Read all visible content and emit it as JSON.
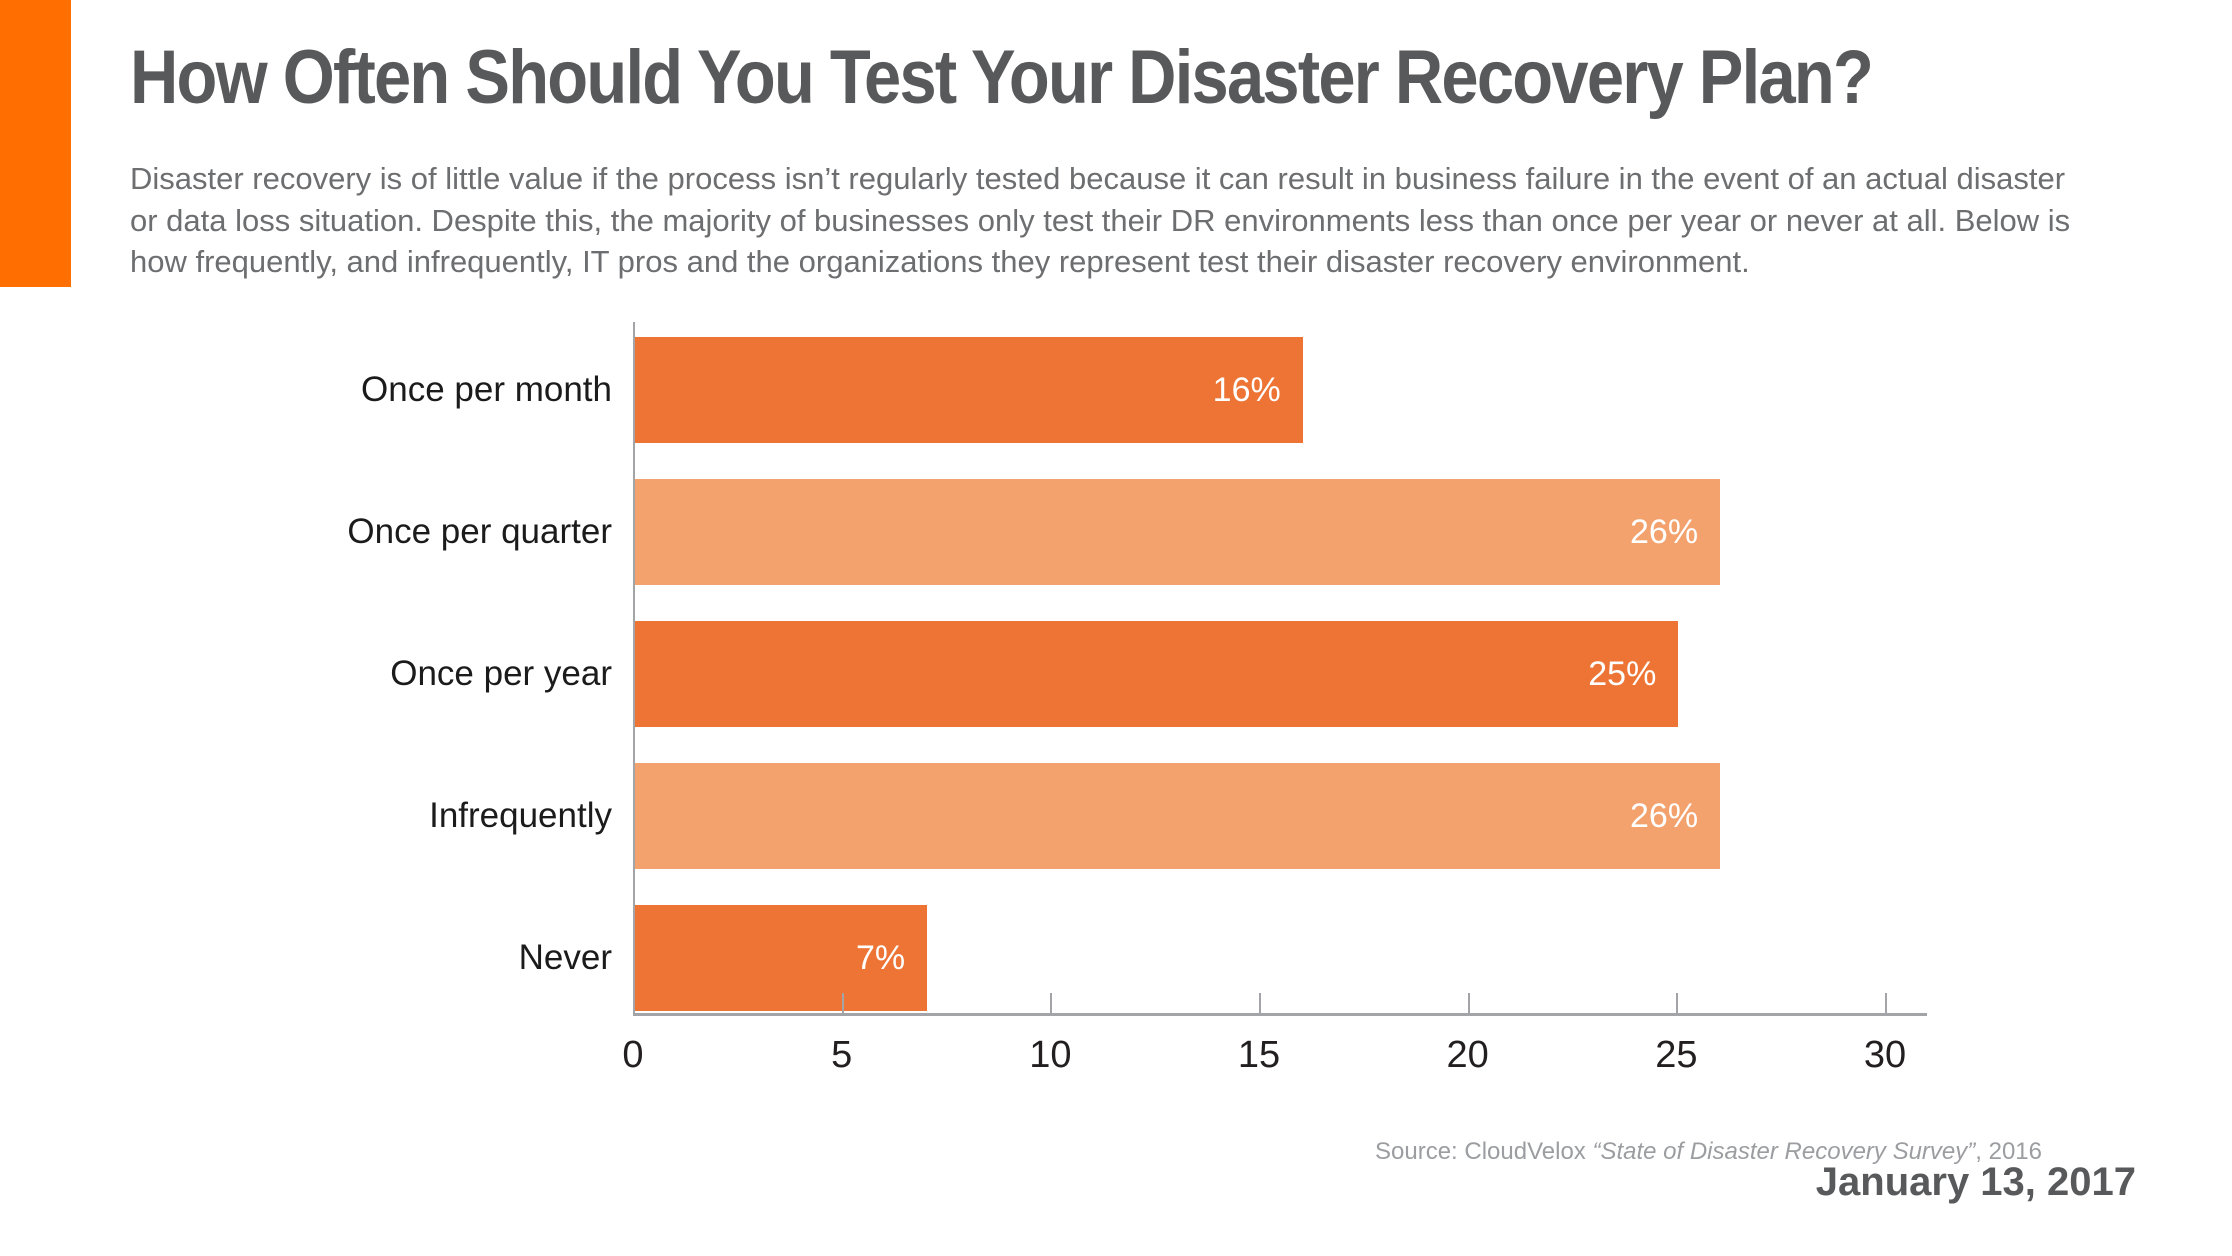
{
  "page": {
    "title": "How Often Should You Test Your Disaster Recovery Plan?",
    "subtitle": "Disaster recovery is of little value if the process isn’t regularly tested because it can result in business failure in the event of an actual disaster or data loss situation. Despite this, the majority of businesses only test their DR environments less than once per year or never at all. Below is how frequently, and infrequently, IT pros and the organizations they represent test their disaster recovery environment.",
    "source_prefix": "Source: CloudVelox ",
    "source_title": "“State of Disaster Recovery Survey”",
    "source_suffix": ", 2016",
    "date": "January 13, 2017"
  },
  "colors": {
    "accent": "#FF6E01",
    "bar_dark": "#ED7434",
    "bar_light": "#F3A26E",
    "title_text": "#58595B",
    "subtitle_text": "#6D6E70",
    "source_text": "#9B9DA0",
    "axis": "#A2A4A7",
    "label_text": "#1B1B1B",
    "value_text": "#FFFFFF"
  },
  "chart_data": {
    "type": "bar",
    "orientation": "horizontal",
    "title": "How Often Should You Test Your Disaster Recovery Plan?",
    "categories": [
      "Once per month",
      "Once per quarter",
      "Once per year",
      "Infrequently",
      "Never"
    ],
    "values": [
      16,
      26,
      25,
      26,
      7
    ],
    "value_labels": [
      "16%",
      "26%",
      "25%",
      "26%",
      "7%"
    ],
    "bar_colors": [
      "#ED7434",
      "#F3A26E",
      "#ED7434",
      "#F3A26E",
      "#ED7434"
    ],
    "xlabel": "",
    "ylabel": "",
    "xlim": [
      0,
      30
    ],
    "x_ticks": [
      0,
      5,
      10,
      15,
      20,
      25,
      30
    ],
    "grid": false,
    "legend": false,
    "value_label_position": "inside-right"
  }
}
